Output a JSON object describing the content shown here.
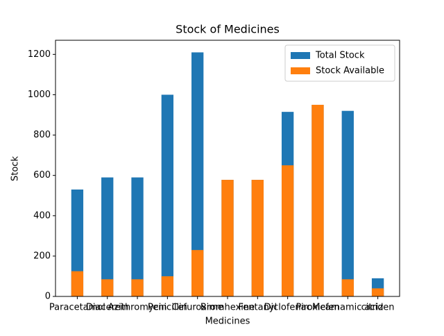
{
  "chart_data": {
    "type": "bar",
    "title": "Stock of Medicines",
    "x_label": "Medicines",
    "y_label": "Stock",
    "categories": [
      "Paracetamol",
      "Diacerein",
      "Azithromycin",
      "Penicillin",
      "Cefuroxime",
      "Bromhexine",
      "Fentanyl",
      "Diclofenac",
      "Piroxicam",
      "Mefenamic acid",
      "citrizen"
    ],
    "series": [
      {
        "name": "Total Stock",
        "color": "#1f77b4",
        "values": [
          530,
          590,
          590,
          1000,
          1210,
          578,
          578,
          915,
          950,
          920,
          90
        ]
      },
      {
        "name": "Stock Available",
        "color": "#ff7f0e",
        "values": [
          125,
          85,
          85,
          100,
          230,
          578,
          578,
          650,
          950,
          85,
          40
        ]
      }
    ],
    "ylim": [
      0,
      1270
    ],
    "yticks": [
      0,
      200,
      400,
      600,
      800,
      1000,
      1200
    ],
    "legend": "upper right",
    "grid": false
  }
}
